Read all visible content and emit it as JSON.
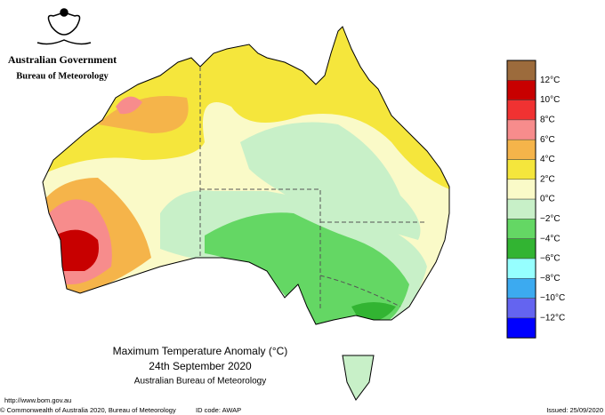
{
  "header": {
    "government": "Australian Government",
    "agency": "Bureau of Meteorology"
  },
  "map": {
    "title": "Maximum Temperature Anomaly (°C)",
    "date": "24th September 2020",
    "source": "Australian Bureau of Meteorology"
  },
  "legend": {
    "colors": [
      "#9c6b3c",
      "#c80000",
      "#f03232",
      "#f78c8c",
      "#f5b44a",
      "#f5e63c",
      "#fafac8",
      "#c8f0c8",
      "#64d764",
      "#32b432",
      "#96ffff",
      "#3caaf0",
      "#6464f0",
      "#0000ff"
    ],
    "labels": [
      "12°C",
      "10°C",
      "8°C",
      "6°C",
      "4°C",
      "2°C",
      "0°C",
      "−2°C",
      "−4°C",
      "−6°C",
      "−8°C",
      "−10°C",
      "−12°C"
    ]
  },
  "footer": {
    "url": "http://www.bom.gov.au",
    "copyright": "© Commonwealth of Australia 2020, Bureau of Meteorology",
    "id_code": "ID code: AWAP",
    "issued": "Issued: 25/09/2020"
  }
}
